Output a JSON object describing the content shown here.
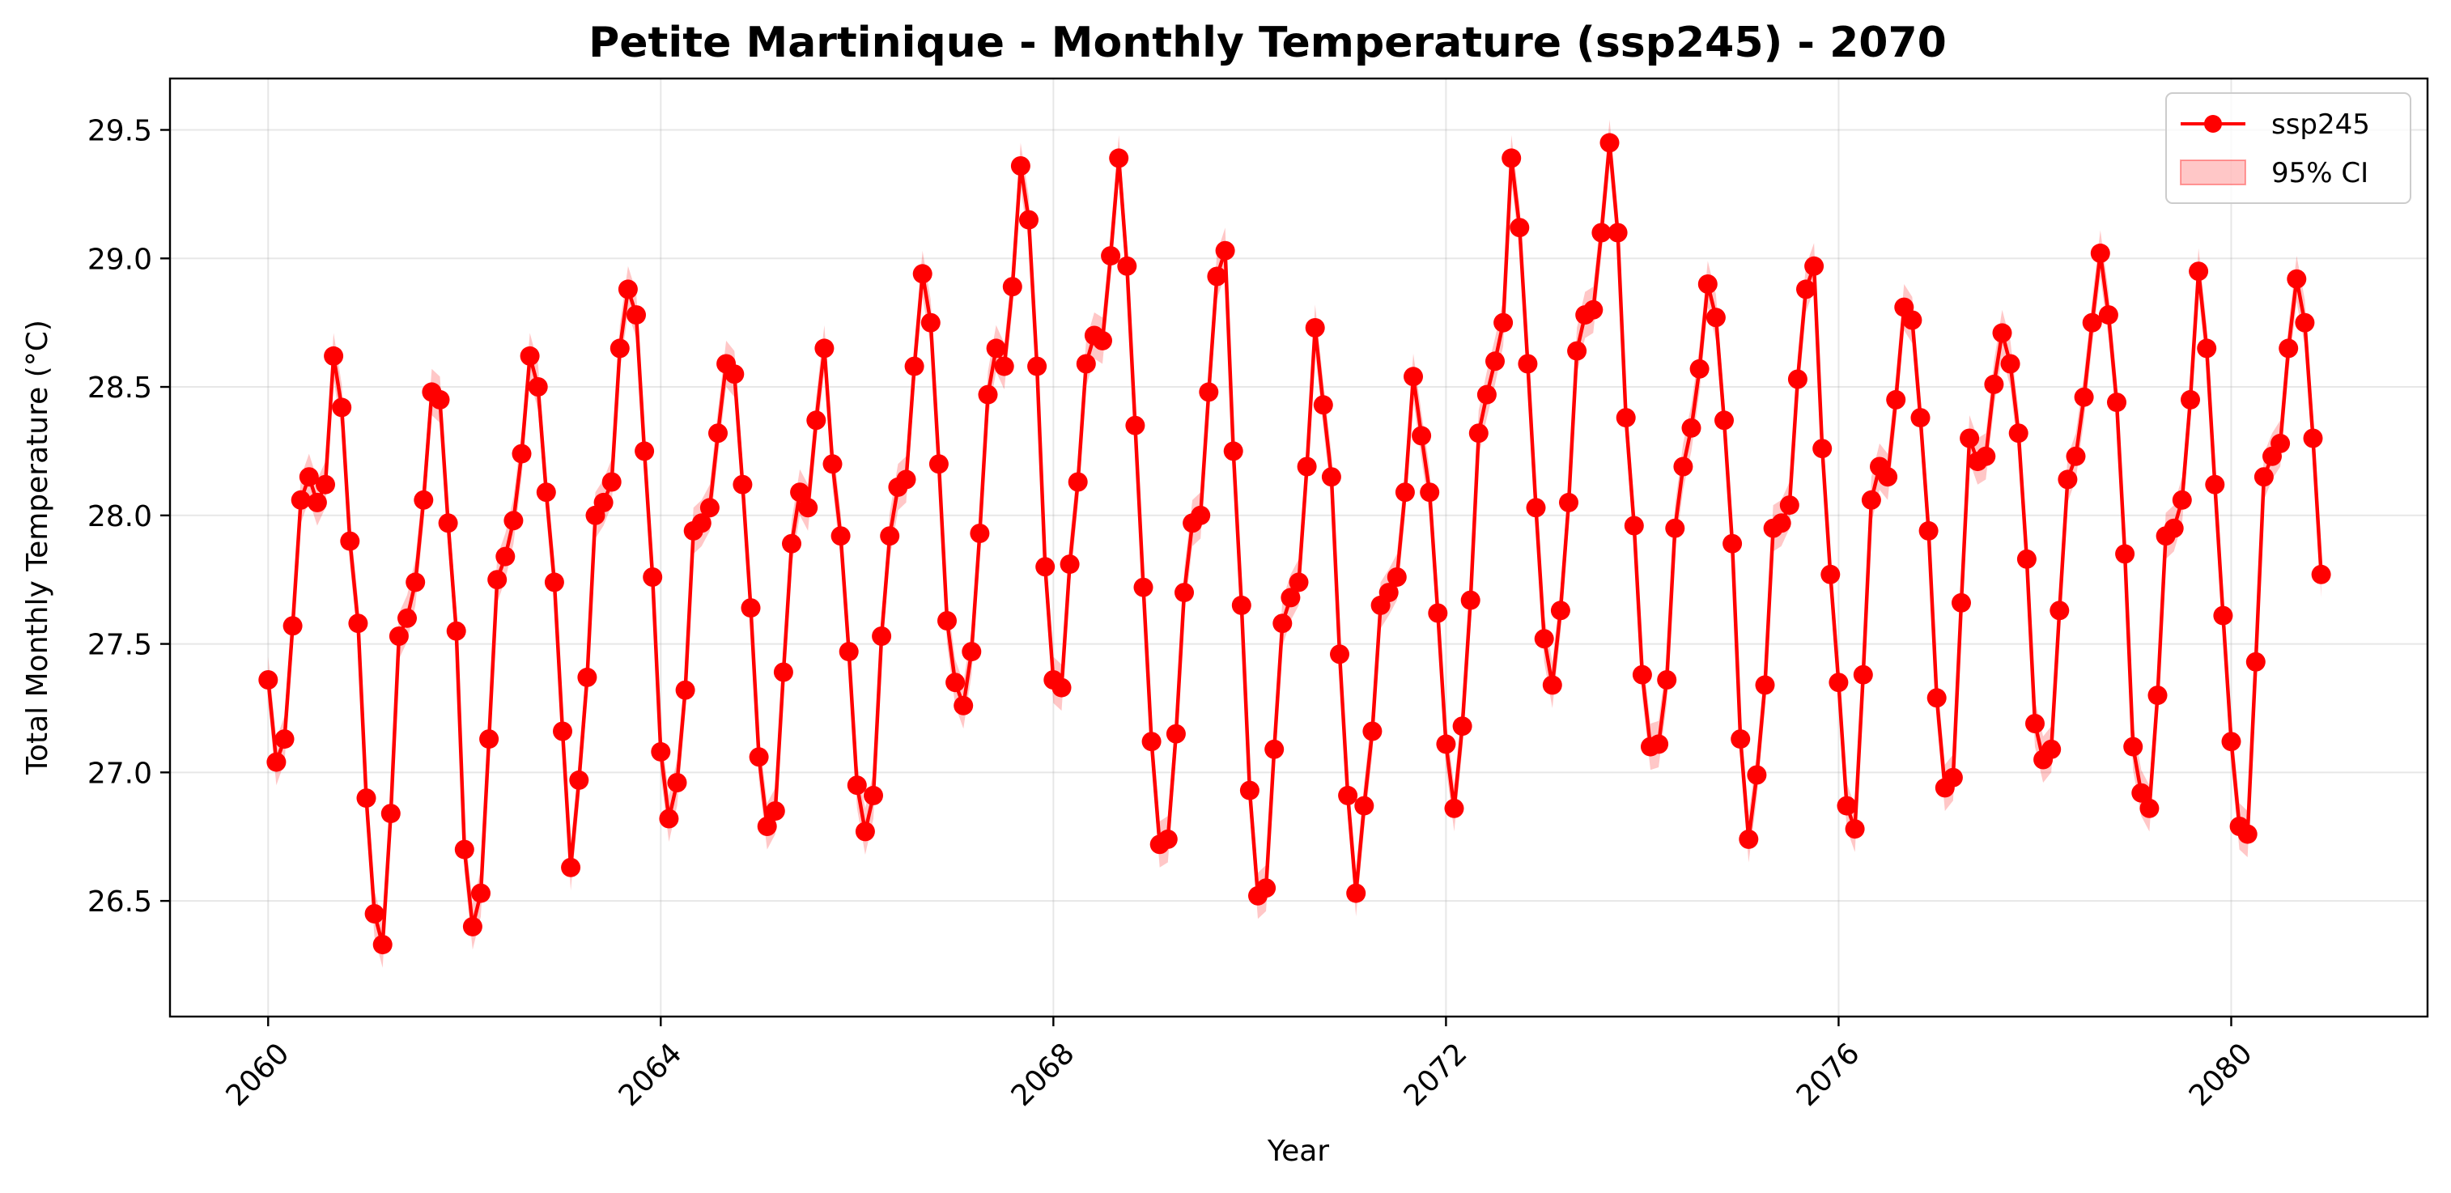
{
  "chart_data": {
    "type": "line",
    "title": "Petite Martinique - Monthly Temperature (ssp245) - 2070",
    "xlabel": "Year",
    "ylabel": "Total Monthly Temperature (°C)",
    "xlim": [
      2059.0,
      2082.0
    ],
    "ylim": [
      26.05,
      29.7
    ],
    "x_ticks": [
      2060,
      2064,
      2068,
      2072,
      2076,
      2080
    ],
    "x_tick_labels": [
      "2060",
      "2064",
      "2068",
      "2072",
      "2076",
      "2080"
    ],
    "y_ticks": [
      26.5,
      27.0,
      27.5,
      28.0,
      28.5,
      29.0,
      29.5
    ],
    "y_tick_labels": [
      "26.5",
      "27.0",
      "27.5",
      "28.0",
      "28.5",
      "29.0",
      "29.5"
    ],
    "grid": true,
    "legend_position": "top-right",
    "legend": [
      {
        "label": "ssp245",
        "kind": "line-marker",
        "color": "#ff0000"
      },
      {
        "label": "95% CI",
        "kind": "band",
        "color": "#ff0000"
      }
    ],
    "ci_halfwidth": 0.09,
    "x_start_year": 2060,
    "points_per_year": 12,
    "series": [
      {
        "name": "ssp245",
        "color": "#ff0000",
        "values": [
          27.36,
          27.04,
          27.13,
          27.57,
          28.06,
          28.15,
          28.05,
          28.12,
          28.62,
          28.42,
          27.9,
          27.58,
          26.9,
          26.45,
          26.33,
          26.84,
          27.53,
          27.6,
          27.74,
          28.06,
          28.48,
          28.45,
          27.97,
          27.55,
          26.7,
          26.4,
          26.53,
          27.13,
          27.75,
          27.84,
          27.98,
          28.24,
          28.62,
          28.5,
          28.09,
          27.74,
          27.16,
          26.63,
          26.97,
          27.37,
          28.0,
          28.05,
          28.13,
          28.65,
          28.88,
          28.78,
          28.25,
          27.76,
          27.08,
          26.82,
          26.96,
          27.32,
          27.94,
          27.97,
          28.03,
          28.32,
          28.59,
          28.55,
          28.12,
          27.64,
          27.06,
          26.79,
          26.85,
          27.39,
          27.89,
          28.09,
          28.03,
          28.37,
          28.65,
          28.2,
          27.92,
          27.47,
          26.95,
          26.77,
          26.91,
          27.53,
          27.92,
          28.11,
          28.14,
          28.58,
          28.94,
          28.75,
          28.2,
          27.59,
          27.35,
          27.26,
          27.47,
          27.93,
          28.47,
          28.65,
          28.58,
          28.89,
          29.36,
          29.15,
          28.58,
          27.8,
          27.36,
          27.33,
          27.81,
          28.13,
          28.59,
          28.7,
          28.68,
          29.01,
          29.39,
          28.97,
          28.35,
          27.72,
          27.12,
          26.72,
          26.74,
          27.15,
          27.7,
          27.97,
          28.0,
          28.48,
          28.93,
          29.03,
          28.25,
          27.65,
          26.93,
          26.52,
          26.55,
          27.09,
          27.58,
          27.68,
          27.74,
          28.19,
          28.73,
          28.43,
          28.15,
          27.46,
          26.91,
          26.53,
          26.87,
          27.16,
          27.65,
          27.7,
          27.76,
          28.09,
          28.54,
          28.31,
          28.09,
          27.62,
          27.11,
          26.86,
          27.18,
          27.67,
          28.32,
          28.47,
          28.6,
          28.75,
          29.39,
          29.12,
          28.59,
          28.03,
          27.52,
          27.34,
          27.63,
          28.05,
          28.64,
          28.78,
          28.8,
          29.1,
          29.45,
          29.1,
          28.38,
          27.96,
          27.38,
          27.1,
          27.11,
          27.36,
          27.95,
          28.19,
          28.34,
          28.57,
          28.9,
          28.77,
          28.37,
          27.89,
          27.13,
          26.74,
          26.99,
          27.34,
          27.95,
          27.97,
          28.04,
          28.53,
          28.88,
          28.97,
          28.26,
          27.77,
          27.35,
          26.87,
          26.78,
          27.38,
          28.06,
          28.19,
          28.15,
          28.45,
          28.81,
          28.76,
          28.38,
          27.94,
          27.29,
          26.94,
          26.98,
          27.66,
          28.3,
          28.21,
          28.23,
          28.51,
          28.71,
          28.59,
          28.32,
          27.83,
          27.19,
          27.05,
          27.09,
          27.63,
          28.14,
          28.23,
          28.46,
          28.75,
          29.02,
          28.78,
          28.44,
          27.85,
          27.1,
          26.92,
          26.86,
          27.3,
          27.92,
          27.95,
          28.06,
          28.45,
          28.95,
          28.65,
          28.12,
          27.61,
          27.12,
          26.79,
          26.76,
          27.43,
          28.15,
          28.23,
          28.28,
          28.65,
          28.92,
          28.75,
          28.3,
          27.77
        ]
      }
    ]
  }
}
